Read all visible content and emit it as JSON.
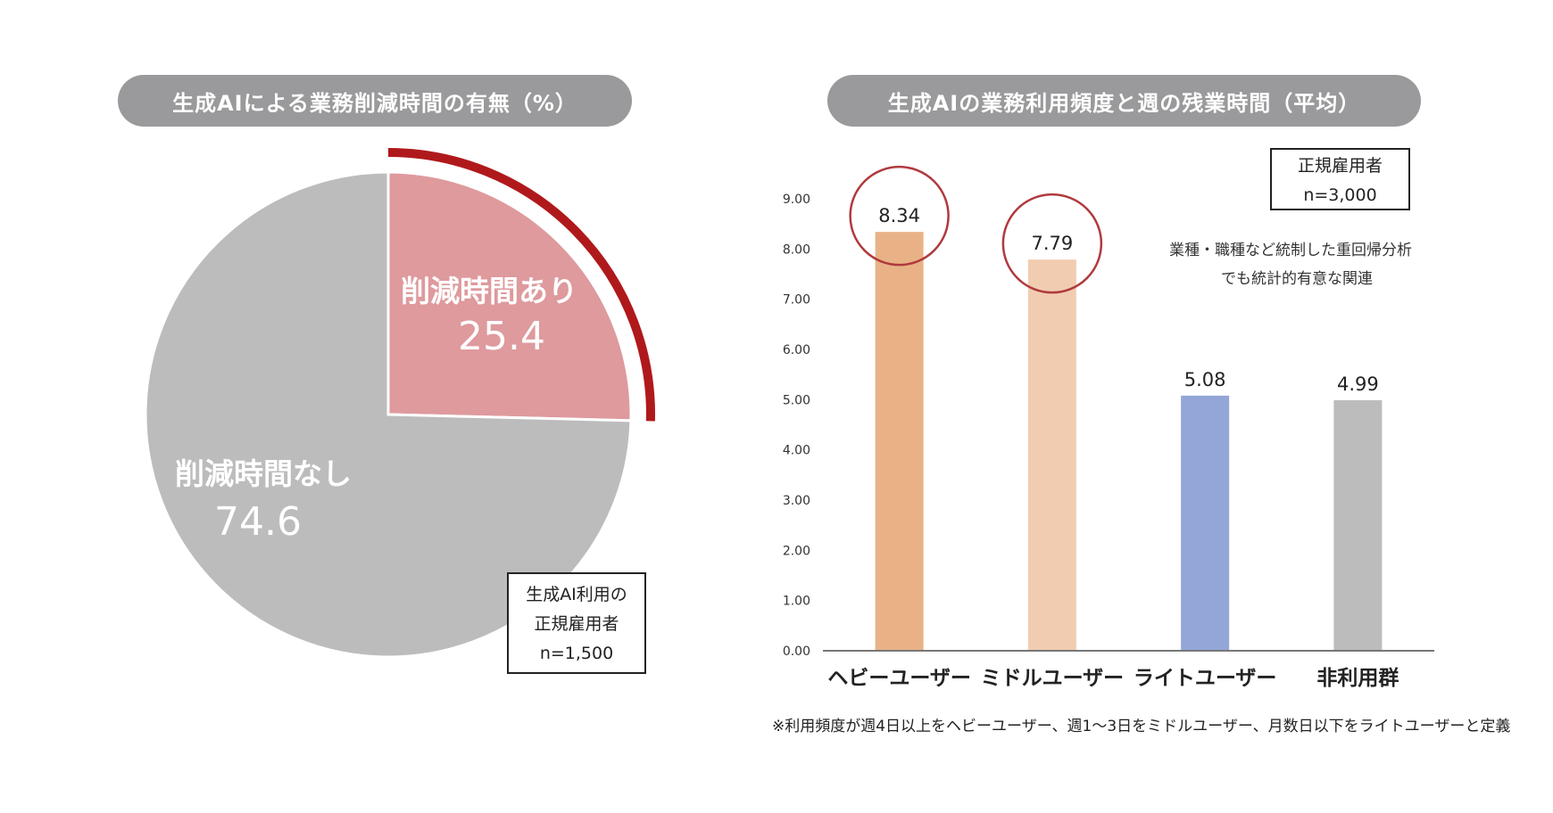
{
  "left_panel": {
    "title": "生成AIによる業務削減時間の有無（%）",
    "box_lines": [
      "生成AI利用の",
      "正規雇用者",
      "n=1,500"
    ]
  },
  "right_panel": {
    "title": "生成AIの業務利用頻度と週の残業時間（平均）",
    "box_lines": [
      "正規雇用者",
      "n=3,000"
    ],
    "note_lines": [
      "業種・職種など統制した重回帰分析",
      "でも統計的有意な関連"
    ],
    "footnote": "※利用頻度が週4日以上をヘビーユーザー、週1～3日をミドルユーザー、月数日以下をライトユーザーと定義"
  },
  "colors": {
    "pie_highlight": "#de9a9d",
    "pie_rest": "#bcbcbc",
    "arc": "#b0191c",
    "circle": "#b03a3e",
    "bar_heavy": "#e9b286",
    "bar_middle": "#f1ccb0",
    "bar_light": "#93a6d8",
    "bar_none": "#bcbcbc",
    "axis": "#777777"
  },
  "chart_data": [
    {
      "type": "pie",
      "title": "生成AIによる業務削減時間の有無（%）",
      "slices": [
        {
          "label": "削減時間あり",
          "value": 25.4,
          "display": "25.4",
          "highlighted": true
        },
        {
          "label": "削減時間なし",
          "value": 74.6,
          "display": "74.6",
          "highlighted": false
        }
      ]
    },
    {
      "type": "bar",
      "title": "生成AIの業務利用頻度と週の残業時間（平均）",
      "categories": [
        "ヘビーユーザー",
        "ミドルユーザー",
        "ライトユーザー",
        "非利用群"
      ],
      "values": [
        8.34,
        7.79,
        5.08,
        4.99
      ],
      "value_labels": [
        "8.34",
        "7.79",
        "5.08",
        "4.99"
      ],
      "circled": [
        true,
        true,
        false,
        false
      ],
      "yticks": [
        "0.00",
        "1.00",
        "2.00",
        "3.00",
        "4.00",
        "5.00",
        "6.00",
        "7.00",
        "8.00",
        "9.00"
      ],
      "ylim": [
        0,
        9
      ],
      "xlabel": "",
      "ylabel": ""
    }
  ]
}
